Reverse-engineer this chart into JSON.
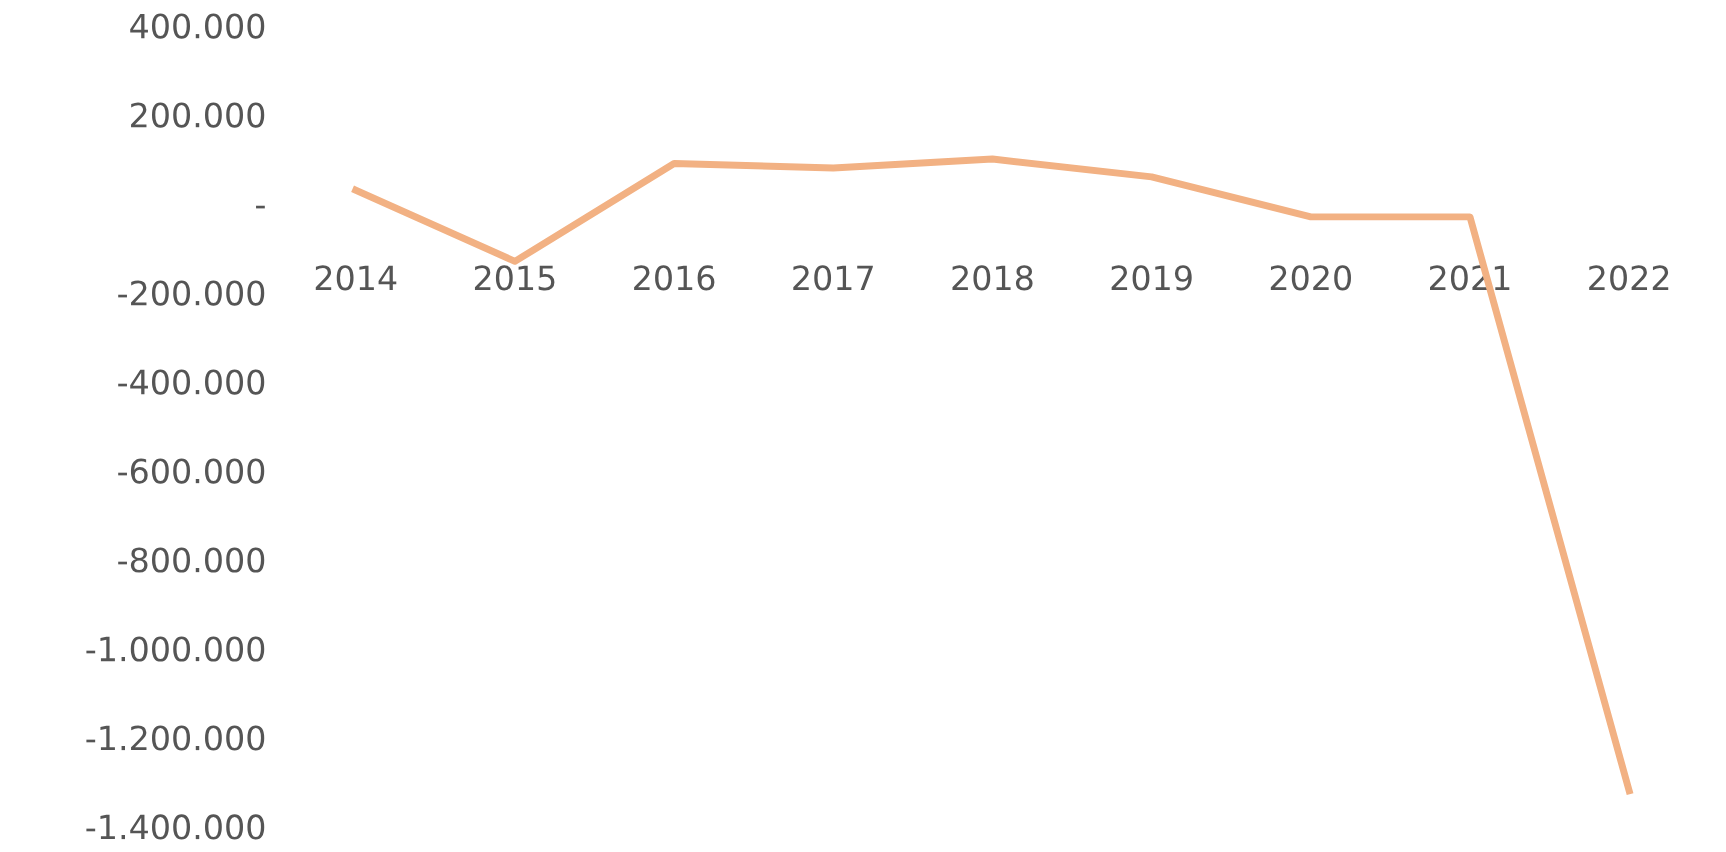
{
  "chart_data": {
    "type": "line",
    "categories": [
      "2014",
      "2015",
      "2016",
      "2017",
      "2018",
      "2019",
      "2020",
      "2021",
      "2022"
    ],
    "series": [
      {
        "color": "#f2b183",
        "values": [
          30000,
          -130000,
          90000,
          80000,
          100000,
          60000,
          -30000,
          -30000,
          -1320000
        ]
      }
    ],
    "ylim": [
      -1400000,
      400000
    ],
    "yticks": [
      {
        "value": -1400000,
        "label": "-1.400.000"
      },
      {
        "value": -1200000,
        "label": "-1.200.000"
      },
      {
        "value": -1000000,
        "label": "-1.000.000"
      },
      {
        "value": -800000,
        "label": "-800.000"
      },
      {
        "value": -600000,
        "label": "-600.000"
      },
      {
        "value": -400000,
        "label": "-400.000"
      },
      {
        "value": -200000,
        "label": "-200.000"
      },
      {
        "value": 0,
        "label": "-"
      },
      {
        "value": 200000,
        "label": "200.000"
      },
      {
        "value": 400000,
        "label": "400.000"
      }
    ],
    "grid": false,
    "marker": "none",
    "line_style": "solid"
  }
}
